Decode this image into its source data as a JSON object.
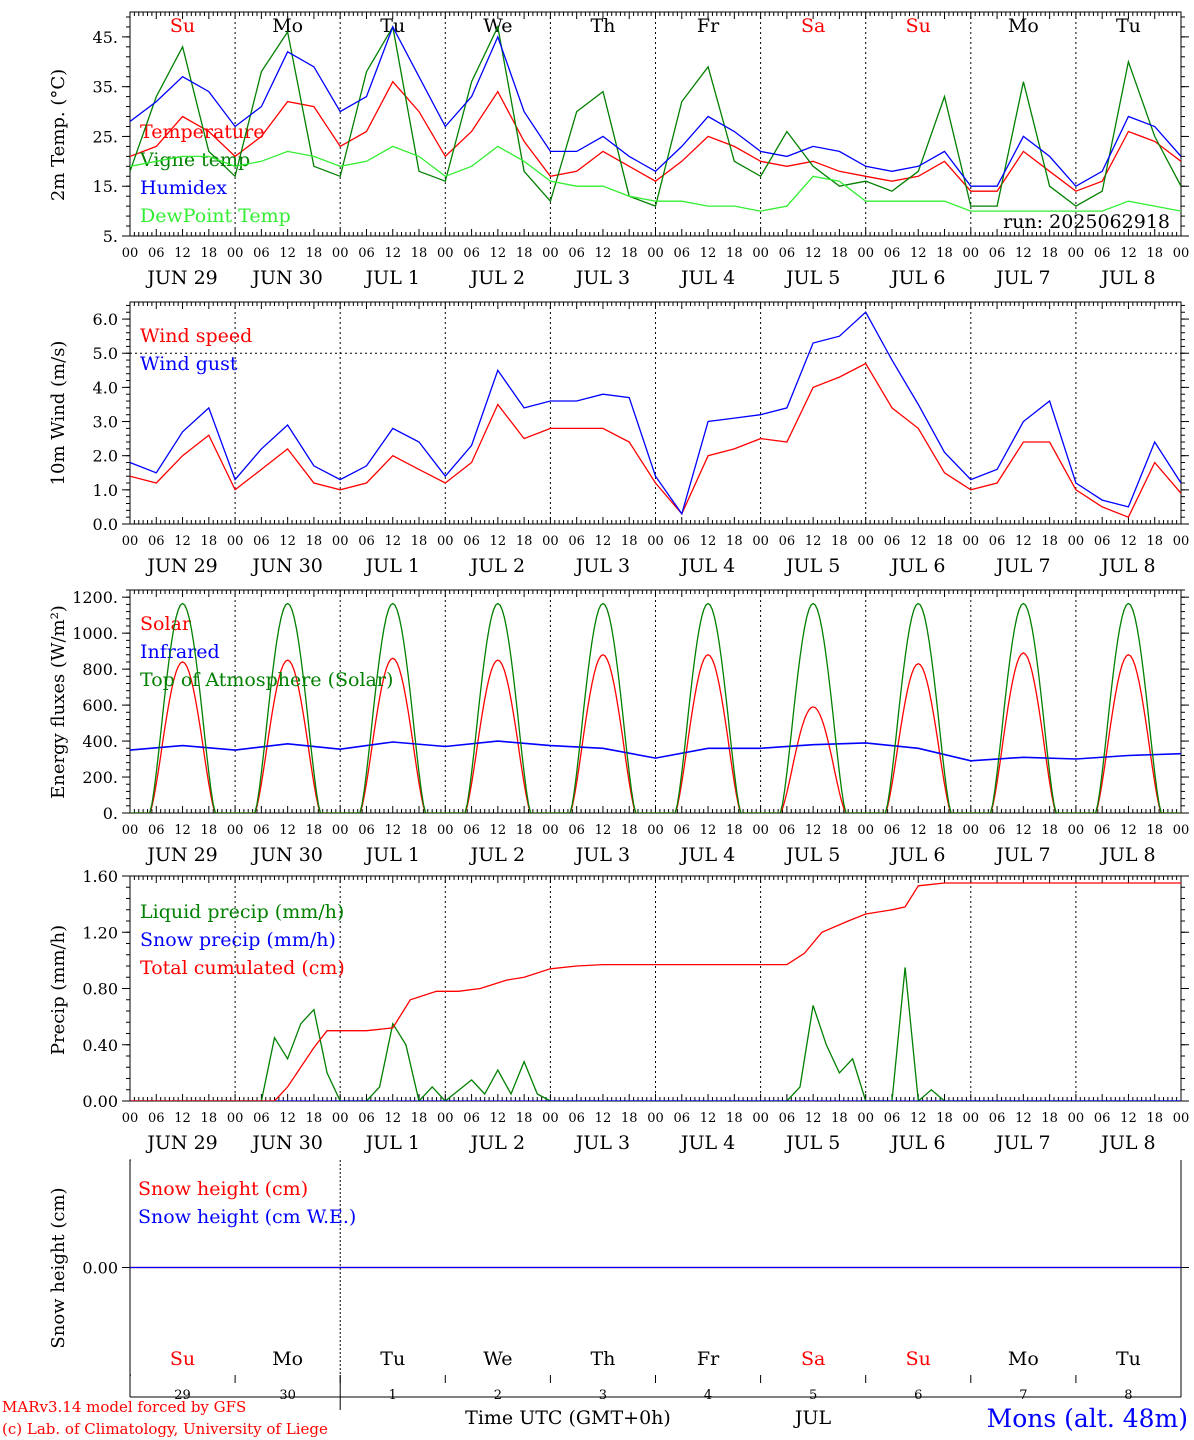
{
  "footer": {
    "credit1": "MARv3.14 model forced by GFS",
    "credit2": "(c) Lab. of Climatology, University of Liege",
    "xlabel": "Time UTC (GMT+0h)",
    "month": "JUL",
    "station": "Mons (alt. 48m)",
    "day_numbers": [
      "29",
      "30",
      "1",
      "2",
      "3",
      "4",
      "5",
      "6",
      "7",
      "8"
    ]
  },
  "colors": {
    "red": "#ff0000",
    "green": "#008000",
    "blue": "#0000ff",
    "lime": "#33ee33",
    "weekend": "#ff0000",
    "text": "#000000"
  },
  "chart_data": [
    {
      "type": "line",
      "id": "temp",
      "ylabel": "2m Temp. (°C)",
      "ylim": [
        5,
        50
      ],
      "ytick_labels": [
        "5.",
        "15.",
        "25.",
        "35.",
        "45."
      ],
      "yticks": [
        5,
        15,
        25,
        35,
        45
      ],
      "run_label": "run: 2025062918",
      "day_labels": [
        "Su",
        "Mo",
        "Tu",
        "We",
        "Th",
        "Fr",
        "Sa",
        "Su",
        "Mo",
        "Tu"
      ],
      "weekend": [
        true,
        false,
        false,
        false,
        false,
        false,
        true,
        true,
        false,
        false
      ],
      "date_labels": [
        "JUN 29",
        "JUN 30",
        "JUL  1",
        "JUL  2",
        "JUL  3",
        "JUL  4",
        "JUL  5",
        "JUL  6",
        "JUL  7",
        "JUL  8"
      ],
      "hour_labels": [
        "00",
        "06",
        "12",
        "18"
      ],
      "x_unit": "hours from 2025-06-29 00 UTC",
      "series": [
        {
          "name": "Temperature",
          "color": "red",
          "x": [
            0,
            6,
            12,
            18,
            24,
            30,
            36,
            42,
            48,
            54,
            60,
            66,
            72,
            78,
            84,
            90,
            96,
            102,
            108,
            114,
            120,
            126,
            132,
            138,
            144,
            150,
            156,
            162,
            168,
            174,
            180,
            186,
            192,
            198,
            204,
            210,
            216,
            222,
            228,
            234,
            240
          ],
          "y": [
            21,
            23,
            29,
            26,
            21,
            25,
            32,
            31,
            23,
            26,
            36,
            30,
            21,
            26,
            34,
            24,
            17,
            18,
            22,
            19,
            16,
            20,
            25,
            23,
            20,
            19,
            20,
            18,
            17,
            16,
            17,
            20,
            14,
            14,
            22,
            18,
            14,
            16,
            26,
            24,
            20
          ]
        },
        {
          "name": "Vigne temp",
          "color": "green",
          "x": [
            0,
            6,
            12,
            18,
            24,
            30,
            36,
            42,
            48,
            54,
            60,
            66,
            72,
            78,
            84,
            90,
            96,
            102,
            108,
            114,
            120,
            126,
            132,
            138,
            144,
            150,
            156,
            162,
            168,
            174,
            180,
            186,
            192,
            198,
            204,
            210,
            216,
            222,
            228,
            234,
            240
          ],
          "y": [
            18,
            33,
            43,
            22,
            17,
            38,
            46,
            19,
            17,
            38,
            47,
            18,
            16,
            36,
            47,
            18,
            12,
            30,
            34,
            13,
            11,
            32,
            39,
            20,
            17,
            26,
            19,
            15,
            16,
            14,
            18,
            33,
            11,
            11,
            36,
            15,
            11,
            14,
            40,
            25,
            15
          ]
        },
        {
          "name": "Humidex",
          "color": "blue",
          "x": [
            0,
            6,
            12,
            18,
            24,
            30,
            36,
            42,
            48,
            54,
            60,
            66,
            72,
            78,
            84,
            90,
            96,
            102,
            108,
            114,
            120,
            126,
            132,
            138,
            144,
            150,
            156,
            162,
            168,
            174,
            180,
            186,
            192,
            198,
            204,
            210,
            216,
            222,
            228,
            234,
            240
          ],
          "y": [
            28,
            32,
            37,
            34,
            27,
            31,
            42,
            39,
            30,
            33,
            47,
            37,
            27,
            33,
            45,
            30,
            22,
            22,
            25,
            21,
            18,
            23,
            29,
            26,
            22,
            21,
            23,
            22,
            19,
            18,
            19,
            22,
            15,
            15,
            25,
            21,
            15,
            18,
            29,
            27,
            21
          ]
        },
        {
          "name": "DewPoint Temp",
          "color": "lime",
          "x": [
            0,
            6,
            12,
            18,
            24,
            30,
            36,
            42,
            48,
            54,
            60,
            66,
            72,
            78,
            84,
            90,
            96,
            102,
            108,
            114,
            120,
            126,
            132,
            138,
            144,
            150,
            156,
            162,
            168,
            174,
            180,
            186,
            192,
            198,
            204,
            210,
            216,
            222,
            228,
            234,
            240
          ],
          "y": [
            19,
            20,
            21,
            21,
            19,
            20,
            22,
            21,
            19,
            20,
            23,
            21,
            17,
            19,
            23,
            20,
            16,
            15,
            15,
            13,
            12,
            12,
            11,
            11,
            10,
            11,
            17,
            16,
            12,
            12,
            12,
            12,
            10,
            10,
            10,
            10,
            10,
            10,
            12,
            11,
            10
          ]
        }
      ]
    },
    {
      "type": "line",
      "id": "wind",
      "ylabel": "10m Wind (m/s)",
      "ylim": [
        0,
        6.5
      ],
      "ytick_labels": [
        "0.0",
        "1.0",
        "2.0",
        "3.0",
        "4.0",
        "5.0",
        "6.0"
      ],
      "yticks": [
        0,
        1,
        2,
        3,
        4,
        5,
        6
      ],
      "ref_line": 5,
      "date_labels": [
        "JUN 29",
        "JUN 30",
        "JUL  1",
        "JUL  2",
        "JUL  3",
        "JUL  4",
        "JUL  5",
        "JUL  6",
        "JUL  7",
        "JUL  8"
      ],
      "hour_labels": [
        "00",
        "06",
        "12",
        "18"
      ],
      "x_unit": "hours from 2025-06-29 00 UTC",
      "series": [
        {
          "name": "Wind speed",
          "color": "red",
          "x": [
            0,
            6,
            12,
            18,
            24,
            30,
            36,
            42,
            48,
            54,
            60,
            66,
            72,
            78,
            84,
            90,
            96,
            102,
            108,
            114,
            120,
            126,
            132,
            138,
            144,
            150,
            156,
            162,
            168,
            174,
            180,
            186,
            192,
            198,
            204,
            210,
            216,
            222,
            228,
            234,
            240
          ],
          "y": [
            1.4,
            1.2,
            2.0,
            2.6,
            1.0,
            1.6,
            2.2,
            1.2,
            1.0,
            1.2,
            2.0,
            1.6,
            1.2,
            1.8,
            3.5,
            2.5,
            2.8,
            2.8,
            2.8,
            2.4,
            1.2,
            0.3,
            2.0,
            2.2,
            2.5,
            2.4,
            4.0,
            4.3,
            4.7,
            3.4,
            2.8,
            1.5,
            1.0,
            1.2,
            2.4,
            2.4,
            1.0,
            0.5,
            0.2,
            1.8,
            0.9
          ]
        },
        {
          "name": "Wind gust",
          "color": "blue",
          "x": [
            0,
            6,
            12,
            18,
            24,
            30,
            36,
            42,
            48,
            54,
            60,
            66,
            72,
            78,
            84,
            90,
            96,
            102,
            108,
            114,
            120,
            126,
            132,
            138,
            144,
            150,
            156,
            162,
            168,
            174,
            180,
            186,
            192,
            198,
            204,
            210,
            216,
            222,
            228,
            234,
            240
          ],
          "y": [
            1.8,
            1.5,
            2.7,
            3.4,
            1.3,
            2.2,
            2.9,
            1.7,
            1.3,
            1.7,
            2.8,
            2.4,
            1.4,
            2.3,
            4.5,
            3.4,
            3.6,
            3.6,
            3.8,
            3.7,
            1.4,
            0.3,
            3.0,
            3.1,
            3.2,
            3.4,
            5.3,
            5.5,
            6.2,
            4.8,
            3.5,
            2.1,
            1.3,
            1.6,
            3.0,
            3.6,
            1.2,
            0.7,
            0.5,
            2.4,
            1.2
          ]
        }
      ]
    },
    {
      "type": "line",
      "id": "energy",
      "ylabel": "Energy fluxes (W/m²)",
      "ylim": [
        0,
        1240
      ],
      "ytick_labels": [
        "0.",
        "200.",
        "400.",
        "600.",
        "800.",
        "1000.",
        "1200."
      ],
      "yticks": [
        0,
        200,
        400,
        600,
        800,
        1000,
        1200
      ],
      "date_labels": [
        "JUN 29",
        "JUN 30",
        "JUL  1",
        "JUL  2",
        "JUL  3",
        "JUL  4",
        "JUL  5",
        "JUL  6",
        "JUL  7",
        "JUL  8"
      ],
      "hour_labels": [
        "00",
        "06",
        "12",
        "18"
      ],
      "x_unit": "hours from 2025-06-29 00 UTC",
      "series": [
        {
          "name": "Solar",
          "color": "red",
          "daily_peak": [
            840,
            850,
            860,
            850,
            880,
            880,
            590,
            830,
            890,
            880
          ]
        },
        {
          "name": "Infrared",
          "color": "blue",
          "x": [
            0,
            12,
            24,
            36,
            48,
            60,
            72,
            84,
            96,
            108,
            120,
            132,
            144,
            156,
            168,
            180,
            192,
            204,
            216,
            228,
            240
          ],
          "y": [
            350,
            375,
            350,
            385,
            355,
            395,
            370,
            400,
            375,
            360,
            305,
            360,
            360,
            380,
            390,
            360,
            290,
            310,
            300,
            320,
            330
          ]
        },
        {
          "name": "Top of Atmosphere (Solar)",
          "color": "green",
          "daily_peak": [
            1165,
            1165,
            1165,
            1165,
            1165,
            1165,
            1165,
            1165,
            1165,
            1165
          ]
        }
      ]
    },
    {
      "type": "line",
      "id": "precip",
      "ylabel": "Precip (mm/h)",
      "ylim": [
        0,
        1.6
      ],
      "ytick_labels": [
        "0.00",
        "0.40",
        "0.80",
        "1.20",
        "1.60"
      ],
      "yticks": [
        0,
        0.4,
        0.8,
        1.2,
        1.6
      ],
      "date_labels": [
        "JUN 29",
        "JUN 30",
        "JUL  1",
        "JUL  2",
        "JUL  3",
        "JUL  4",
        "JUL  5",
        "JUL  6",
        "JUL  7",
        "JUL  8"
      ],
      "hour_labels": [
        "00",
        "06",
        "12",
        "18"
      ],
      "x_unit": "hours from 2025-06-29 00 UTC",
      "series": [
        {
          "name": "Liquid precip (mm/h)",
          "color": "green",
          "x": [
            0,
            30,
            33,
            36,
            39,
            42,
            45,
            48,
            54,
            57,
            60,
            63,
            66,
            69,
            72,
            78,
            81,
            84,
            87,
            90,
            93,
            96,
            120,
            144,
            150,
            153,
            156,
            159,
            162,
            165,
            168,
            174,
            177,
            180,
            183,
            186,
            240
          ],
          "y": [
            0,
            0,
            0.45,
            0.3,
            0.55,
            0.65,
            0.2,
            0,
            0,
            0.1,
            0.55,
            0.4,
            0,
            0.1,
            0,
            0.15,
            0.05,
            0.22,
            0.05,
            0.28,
            0.05,
            0,
            0,
            0,
            0,
            0.1,
            0.68,
            0.4,
            0.2,
            0.3,
            0,
            0,
            0.95,
            0,
            0.08,
            0,
            0
          ]
        },
        {
          "name": "Snow precip (mm/h)",
          "color": "blue",
          "x": [
            0,
            240
          ],
          "y": [
            0,
            0
          ]
        },
        {
          "name": "Total cumulated (cm)",
          "color": "red",
          "x": [
            0,
            33,
            36,
            42,
            45,
            48,
            54,
            60,
            64,
            70,
            75,
            80,
            86,
            90,
            96,
            102,
            108,
            114,
            120,
            126,
            132,
            138,
            144,
            150,
            154,
            158,
            164,
            168,
            174,
            177,
            180,
            186,
            192,
            240
          ],
          "y": [
            0,
            0,
            0.1,
            0.38,
            0.5,
            0.5,
            0.5,
            0.52,
            0.72,
            0.78,
            0.78,
            0.8,
            0.86,
            0.88,
            0.94,
            0.96,
            0.97,
            0.97,
            0.97,
            0.97,
            0.97,
            0.97,
            0.97,
            0.97,
            1.05,
            1.2,
            1.28,
            1.33,
            1.36,
            1.38,
            1.53,
            1.55,
            1.55,
            1.55
          ]
        }
      ]
    },
    {
      "type": "line",
      "id": "snow",
      "ylabel": "Snow height (cm)",
      "ylim": [
        -1,
        1
      ],
      "ytick_labels": [
        "0.00"
      ],
      "yticks": [
        0
      ],
      "day_labels": [
        "Su",
        "Mo",
        "Tu",
        "We",
        "Th",
        "Fr",
        "Sa",
        "Su",
        "Mo",
        "Tu"
      ],
      "weekend": [
        true,
        false,
        false,
        false,
        false,
        false,
        true,
        true,
        false,
        false
      ],
      "x_unit": "hours from 2025-06-29 00 UTC",
      "series": [
        {
          "name": "Snow height (cm)",
          "color": "red",
          "x": [
            0,
            240
          ],
          "y": [
            0,
            0
          ]
        },
        {
          "name": "Snow height (cm W.E.)",
          "color": "blue",
          "x": [
            0,
            240
          ],
          "y": [
            0,
            0
          ]
        }
      ]
    }
  ]
}
